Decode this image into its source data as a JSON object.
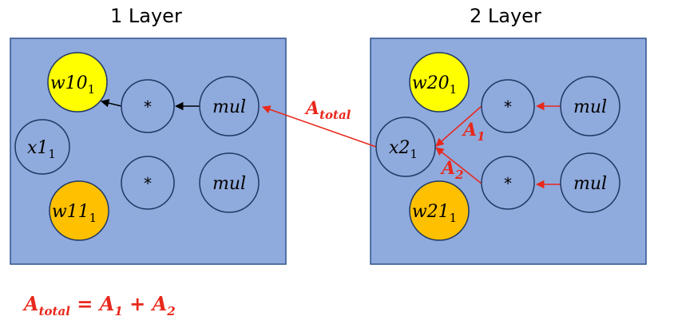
{
  "layers": [
    {
      "title": "1 Layer",
      "nodes": {
        "w10": {
          "base": "w10",
          "sub": "1",
          "fill": "#ffff00"
        },
        "w11": {
          "base": "w11",
          "sub": "1",
          "fill": "#ffc000"
        },
        "x1": {
          "base": "x1",
          "sub": "1",
          "fill": "#8faadc"
        },
        "mul_top": {
          "label": "*"
        },
        "mul_bottom": {
          "label": "*"
        },
        "op_top": {
          "label": "mul"
        },
        "op_bottom": {
          "label": "mul"
        }
      }
    },
    {
      "title": "2 Layer",
      "nodes": {
        "w20": {
          "base": "w20",
          "sub": "1",
          "fill": "#ffff00"
        },
        "w21": {
          "base": "w21",
          "sub": "1",
          "fill": "#ffc000"
        },
        "x2": {
          "base": "x2",
          "sub": "1",
          "fill": "#8faadc"
        },
        "mul_top": {
          "label": "*"
        },
        "mul_bottom": {
          "label": "*"
        },
        "op_top": {
          "label": "mul"
        },
        "op_bottom": {
          "label": "mul"
        }
      }
    }
  ],
  "edge_labels": {
    "a_total": {
      "base": "A",
      "sub": "total"
    },
    "a1": {
      "base": "A",
      "sub": "1"
    },
    "a2": {
      "base": "A",
      "sub": "2"
    }
  },
  "formula": {
    "lhs_base": "A",
    "lhs_sub": "total",
    "equals": "=",
    "t1_base": "A",
    "t1_sub": "1",
    "plus": "+",
    "t2_base": "A",
    "t2_sub": "2"
  },
  "colors": {
    "panel": "#8faadc",
    "panel_border": "#2f528f",
    "node_stroke": "#1f3864",
    "arrow_black": "#000000",
    "arrow_red": "#e8281c",
    "yellow": "#ffff00",
    "orange": "#ffc000"
  }
}
